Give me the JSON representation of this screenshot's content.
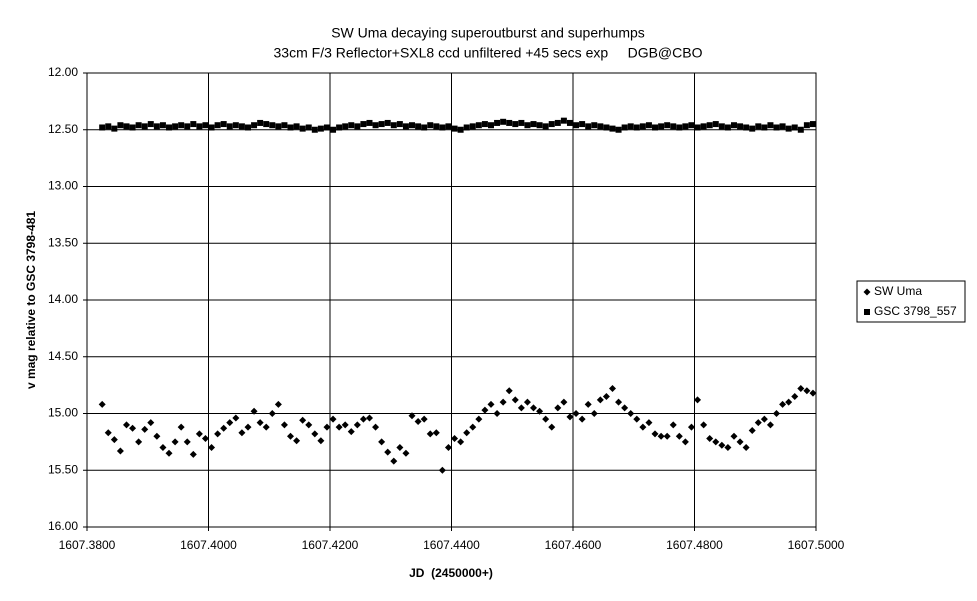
{
  "chart_data": {
    "type": "scatter",
    "title": "SW Uma decaying superoutburst and superhumps",
    "subtitle": "33cm F/3 Reflector+SXL8 ccd unfiltered +45 secs exp     DGB@CBO",
    "xlabel": "JD  (2450000+)",
    "ylabel": "v mag relative to GSC 3798-481",
    "x": [
      1607.3825,
      1607.3835,
      1607.3845,
      1607.3855,
      1607.3865,
      1607.3875,
      1607.3885,
      1607.3895,
      1607.3905,
      1607.3915,
      1607.3925,
      1607.3935,
      1607.3945,
      1607.3955,
      1607.3965,
      1607.3975,
      1607.3985,
      1607.3995,
      1607.4005,
      1607.4015,
      1607.4025,
      1607.4035,
      1607.4045,
      1607.4055,
      1607.4065,
      1607.4075,
      1607.4085,
      1607.4095,
      1607.4105,
      1607.4115,
      1607.4125,
      1607.4135,
      1607.4145,
      1607.4155,
      1607.4165,
      1607.4175,
      1607.4185,
      1607.4195,
      1607.4205,
      1607.4215,
      1607.4225,
      1607.4235,
      1607.4245,
      1607.4255,
      1607.4265,
      1607.4275,
      1607.4285,
      1607.4295,
      1607.4305,
      1607.4315,
      1607.4325,
      1607.4335,
      1607.4345,
      1607.4355,
      1607.4365,
      1607.4375,
      1607.4385,
      1607.4395,
      1607.4405,
      1607.4415,
      1607.4425,
      1607.4435,
      1607.4445,
      1607.4455,
      1607.4465,
      1607.4475,
      1607.4485,
      1607.4495,
      1607.4505,
      1607.4515,
      1607.4525,
      1607.4535,
      1607.4545,
      1607.4555,
      1607.4565,
      1607.4575,
      1607.4585,
      1607.4595,
      1607.4605,
      1607.4615,
      1607.4625,
      1607.4635,
      1607.4645,
      1607.4655,
      1607.4665,
      1607.4675,
      1607.4685,
      1607.4695,
      1607.4705,
      1607.4715,
      1607.4725,
      1607.4735,
      1607.4745,
      1607.4755,
      1607.4765,
      1607.4775,
      1607.4785,
      1607.4795,
      1607.4805,
      1607.4815,
      1607.4825,
      1607.4835,
      1607.4845,
      1607.4855,
      1607.4865,
      1607.4875,
      1607.4885,
      1607.4895,
      1607.4905,
      1607.4915,
      1607.4925,
      1607.4935,
      1607.4945,
      1607.4955,
      1607.4965,
      1607.4975,
      1607.4985,
      1607.4995
    ],
    "series": [
      {
        "name": "SW Uma",
        "color": "#000000",
        "marker": "diamond",
        "values": [
          14.92,
          15.17,
          15.23,
          15.33,
          15.1,
          15.13,
          15.25,
          15.14,
          15.08,
          15.2,
          15.3,
          15.35,
          15.25,
          15.12,
          15.25,
          15.36,
          15.18,
          15.22,
          15.3,
          15.18,
          15.13,
          15.08,
          15.04,
          15.17,
          15.12,
          14.98,
          15.08,
          15.12,
          15.0,
          14.92,
          15.1,
          15.2,
          15.24,
          15.06,
          15.1,
          15.18,
          15.24,
          15.12,
          15.05,
          15.12,
          15.1,
          15.16,
          15.1,
          15.05,
          15.04,
          15.12,
          15.25,
          15.34,
          15.42,
          15.3,
          15.35,
          15.02,
          15.07,
          15.05,
          15.18,
          15.17,
          15.5,
          15.3,
          15.22,
          15.25,
          15.17,
          15.12,
          15.05,
          14.97,
          14.92,
          15.0,
          14.9,
          14.8,
          14.88,
          14.95,
          14.9,
          14.95,
          14.98,
          15.05,
          15.12,
          14.95,
          14.9,
          15.03,
          15.0,
          15.05,
          14.92,
          15.0,
          14.88,
          14.85,
          14.78,
          14.9,
          14.95,
          15.0,
          15.05,
          15.12,
          15.08,
          15.18,
          15.2,
          15.2,
          15.1,
          15.2,
          15.25,
          15.12,
          14.88,
          15.1,
          15.22,
          15.25,
          15.28,
          15.3,
          15.2,
          15.25,
          15.3,
          15.15,
          15.08,
          15.05,
          15.1,
          15.0,
          14.92,
          14.9,
          14.85,
          14.78,
          14.8,
          14.82
        ]
      },
      {
        "name": "GSC 3798_557",
        "color": "#000000",
        "marker": "square",
        "values": [
          12.48,
          12.47,
          12.49,
          12.46,
          12.47,
          12.48,
          12.46,
          12.47,
          12.45,
          12.47,
          12.46,
          12.48,
          12.47,
          12.46,
          12.47,
          12.45,
          12.47,
          12.46,
          12.48,
          12.46,
          12.45,
          12.47,
          12.46,
          12.47,
          12.48,
          12.46,
          12.44,
          12.45,
          12.46,
          12.47,
          12.46,
          12.48,
          12.47,
          12.49,
          12.48,
          12.5,
          12.49,
          12.48,
          12.5,
          12.48,
          12.47,
          12.46,
          12.47,
          12.45,
          12.44,
          12.46,
          12.45,
          12.44,
          12.46,
          12.45,
          12.47,
          12.46,
          12.47,
          12.48,
          12.46,
          12.47,
          12.48,
          12.47,
          12.49,
          12.5,
          12.48,
          12.47,
          12.46,
          12.45,
          12.46,
          12.44,
          12.43,
          12.44,
          12.45,
          12.44,
          12.46,
          12.45,
          12.46,
          12.47,
          12.45,
          12.44,
          12.42,
          12.44,
          12.46,
          12.45,
          12.47,
          12.46,
          12.47,
          12.48,
          12.49,
          12.5,
          12.48,
          12.47,
          12.48,
          12.47,
          12.46,
          12.48,
          12.47,
          12.46,
          12.47,
          12.48,
          12.47,
          12.46,
          12.48,
          12.47,
          12.46,
          12.45,
          12.47,
          12.48,
          12.46,
          12.47,
          12.48,
          12.49,
          12.47,
          12.48,
          12.46,
          12.48,
          12.47,
          12.49,
          12.48,
          12.5,
          12.46,
          12.45
        ]
      }
    ],
    "xlim": [
      1607.38,
      1607.5
    ],
    "xticks": [
      {
        "value": 1607.38,
        "label": "1607.3800"
      },
      {
        "value": 1607.4,
        "label": "1607.4000"
      },
      {
        "value": 1607.42,
        "label": "1607.4200"
      },
      {
        "value": 1607.44,
        "label": "1607.4400"
      },
      {
        "value": 1607.46,
        "label": "1607.4600"
      },
      {
        "value": 1607.48,
        "label": "1607.4800"
      },
      {
        "value": 1607.5,
        "label": "1607.5000"
      }
    ],
    "ylim": [
      12,
      16
    ],
    "y_reversed": true,
    "yticks": [
      {
        "value": 12,
        "label": "12.00"
      },
      {
        "value": 12.5,
        "label": "12.50"
      },
      {
        "value": 13,
        "label": "13.00"
      },
      {
        "value": 13.5,
        "label": "13.50"
      },
      {
        "value": 14,
        "label": "14.00"
      },
      {
        "value": 14.5,
        "label": "14.50"
      },
      {
        "value": 15,
        "label": "15.00"
      },
      {
        "value": 15.5,
        "label": "15.50"
      },
      {
        "value": 16,
        "label": "16.00"
      }
    ],
    "grid": true,
    "legend": "right"
  }
}
